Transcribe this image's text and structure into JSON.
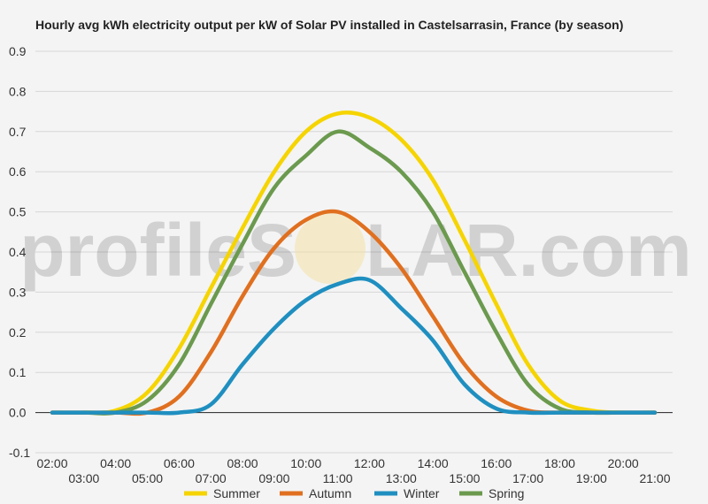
{
  "chart_data": {
    "type": "line",
    "title": "Hourly avg kWh electricity output per kW of Solar PV installed in Castelsarrasin, France (by season)",
    "xlabel": "",
    "ylabel": "",
    "ylim": [
      -0.1,
      0.9
    ],
    "yticks": [
      "-0.1",
      "0.0",
      "0.1",
      "0.2",
      "0.3",
      "0.4",
      "0.5",
      "0.6",
      "0.7",
      "0.8",
      "0.9"
    ],
    "x": [
      "02:00",
      "03:00",
      "04:00",
      "05:00",
      "06:00",
      "07:00",
      "08:00",
      "09:00",
      "10:00",
      "11:00",
      "12:00",
      "13:00",
      "14:00",
      "15:00",
      "16:00",
      "17:00",
      "18:00",
      "19:00",
      "20:00",
      "21:00"
    ],
    "grid": true,
    "legend_position": "bottom",
    "series": [
      {
        "name": "Summer",
        "color": "#f5d400",
        "values": [
          0,
          0,
          0.005,
          0.05,
          0.16,
          0.31,
          0.46,
          0.6,
          0.7,
          0.745,
          0.735,
          0.68,
          0.58,
          0.43,
          0.27,
          0.12,
          0.03,
          0.005,
          0,
          0
        ]
      },
      {
        "name": "Autumn",
        "color": "#e07020",
        "values": [
          0,
          0,
          0,
          0,
          0.04,
          0.15,
          0.29,
          0.41,
          0.48,
          0.5,
          0.45,
          0.36,
          0.24,
          0.12,
          0.04,
          0.005,
          0,
          0,
          0,
          0
        ]
      },
      {
        "name": "Winter",
        "color": "#1f8fc0",
        "values": [
          0,
          0,
          0,
          0,
          0,
          0.02,
          0.12,
          0.21,
          0.28,
          0.32,
          0.33,
          0.26,
          0.18,
          0.07,
          0.01,
          0,
          0,
          0,
          0,
          0
        ]
      },
      {
        "name": "Spring",
        "color": "#6b9a4e",
        "values": [
          0,
          0,
          0,
          0.03,
          0.12,
          0.27,
          0.42,
          0.56,
          0.64,
          0.7,
          0.66,
          0.6,
          0.5,
          0.35,
          0.2,
          0.07,
          0.01,
          0,
          0,
          0
        ]
      }
    ]
  },
  "watermark": {
    "left": "profileS",
    "right": "LAR.com"
  }
}
